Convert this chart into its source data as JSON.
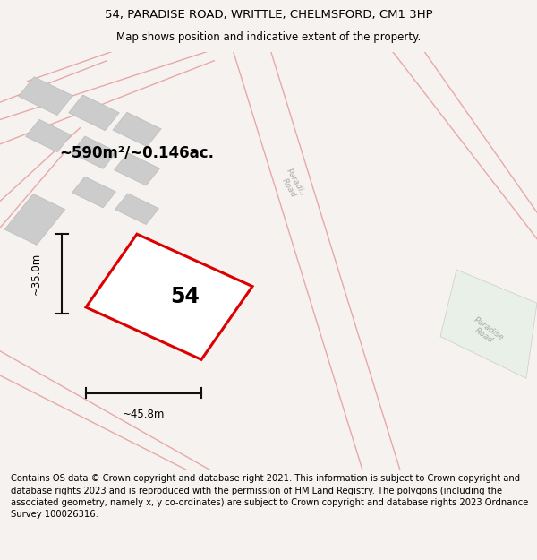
{
  "title_line1": "54, PARADISE ROAD, WRITTLE, CHELMSFORD, CM1 3HP",
  "title_line2": "Map shows position and indicative extent of the property.",
  "footer_text": "Contains OS data © Crown copyright and database right 2021. This information is subject to Crown copyright and database rights 2023 and is reproduced with the permission of HM Land Registry. The polygons (including the associated geometry, namely x, y co-ordinates) are subject to Crown copyright and database rights 2023 Ordnance Survey 100026316.",
  "bg_color": "#f5f2ef",
  "map_bg": "#ffffff",
  "area_label": "~590m²/~0.146ac.",
  "number_label": "54",
  "dim_width": "~45.8m",
  "dim_height": "~35.0m",
  "road_label1": "Paradi...\nRoad",
  "road_label2": "Paradise Road",
  "title_fontsize": 9.5,
  "subtitle_fontsize": 8.5,
  "footer_fontsize": 7.2,
  "road_lines_color": "#e8a8a8",
  "building_color": "#cccccc",
  "building_edge": "#bbbbbb",
  "highlight_color": "#dd0000",
  "dim_line_color": "#111111",
  "road_text_color": "#aaaaaa"
}
